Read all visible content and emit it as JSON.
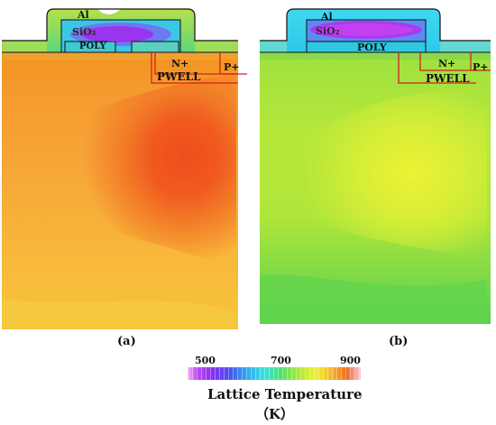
{
  "panels": [
    {
      "label": "(a)",
      "regions": {
        "metal": "Al",
        "oxide": "SiO₂",
        "gate": "POLY",
        "source": "N+",
        "body_contact": "P+",
        "well": "PWELL"
      }
    },
    {
      "label": "(b)",
      "regions": {
        "metal": "Al",
        "oxide": "SiO₂",
        "gate": "POLY",
        "source": "N+",
        "body_contact": "P+",
        "well": "PWELL"
      }
    }
  ],
  "colorbar": {
    "ticks": [
      "500",
      "700",
      "900"
    ],
    "title": "Lattice Temperature",
    "unit": "（K）",
    "min": 500,
    "max": 900
  },
  "colors": {
    "junction_line": "#d42020",
    "hot_core_a": "#f0501e",
    "warm_field_a": "#f49a30",
    "hot_core_b": "#f0f030",
    "warm_field_b": "#a8e83c",
    "oxide_core": "#9a30f0",
    "metal_a": "#7ce860",
    "metal_b": "#48d8f0"
  }
}
